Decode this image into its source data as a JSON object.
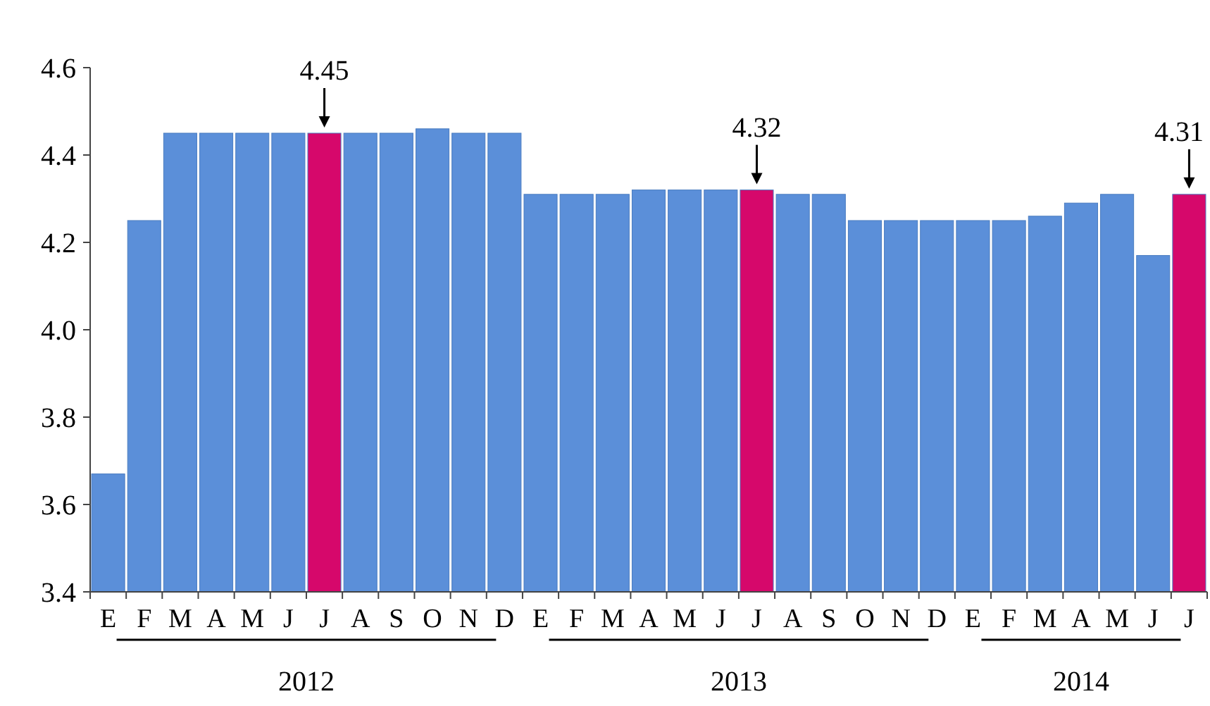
{
  "chart_data": {
    "type": "bar",
    "categories": [
      "E",
      "F",
      "M",
      "A",
      "M",
      "J",
      "J",
      "A",
      "S",
      "O",
      "N",
      "D",
      "E",
      "F",
      "M",
      "A",
      "M",
      "J",
      "J",
      "A",
      "S",
      "O",
      "N",
      "D",
      "E",
      "F",
      "M",
      "A",
      "M",
      "J",
      "J"
    ],
    "values": [
      3.67,
      4.25,
      4.45,
      4.45,
      4.45,
      4.45,
      4.45,
      4.45,
      4.45,
      4.46,
      4.45,
      4.45,
      4.31,
      4.31,
      4.31,
      4.32,
      4.32,
      4.32,
      4.32,
      4.31,
      4.31,
      4.25,
      4.25,
      4.25,
      4.25,
      4.25,
      4.26,
      4.29,
      4.31,
      4.17,
      4.31
    ],
    "colors": [
      "#5b8fd9",
      "#5b8fd9",
      "#5b8fd9",
      "#5b8fd9",
      "#5b8fd9",
      "#5b8fd9",
      "#d6086b",
      "#5b8fd9",
      "#5b8fd9",
      "#5b8fd9",
      "#5b8fd9",
      "#5b8fd9",
      "#5b8fd9",
      "#5b8fd9",
      "#5b8fd9",
      "#5b8fd9",
      "#5b8fd9",
      "#5b8fd9",
      "#d6086b",
      "#5b8fd9",
      "#5b8fd9",
      "#5b8fd9",
      "#5b8fd9",
      "#5b8fd9",
      "#5b8fd9",
      "#5b8fd9",
      "#5b8fd9",
      "#5b8fd9",
      "#5b8fd9",
      "#5b8fd9",
      "#d6086b"
    ],
    "ylim": [
      3.4,
      4.6
    ],
    "yticks": [
      {
        "value": 3.4,
        "label": "3.4"
      },
      {
        "value": 3.6,
        "label": "3.6"
      },
      {
        "value": 3.8,
        "label": "3.8"
      },
      {
        "value": 4.0,
        "label": "4.0"
      },
      {
        "value": 4.2,
        "label": "4.2"
      },
      {
        "value": 4.4,
        "label": "4.4"
      },
      {
        "value": 4.6,
        "label": "4.6"
      }
    ],
    "annotations": [
      "4.45",
      "4.32",
      "4.31",
      "2012",
      "2013",
      "2014"
    ]
  }
}
